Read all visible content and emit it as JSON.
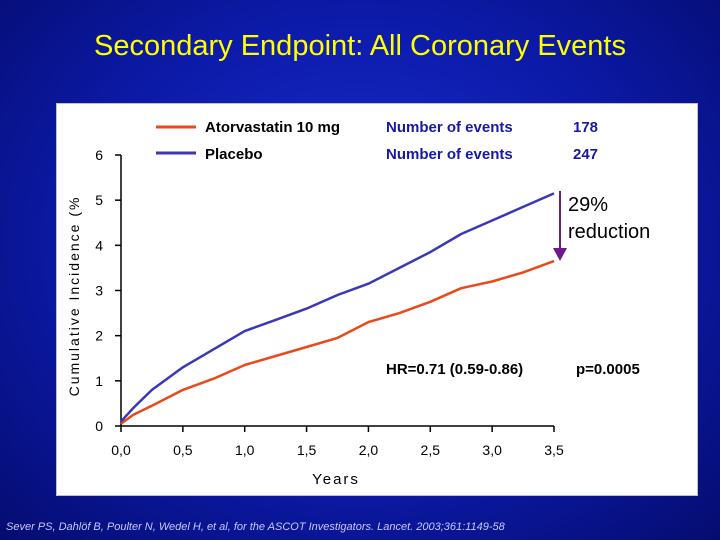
{
  "slide": {
    "title": "Secondary Endpoint: All Coronary Events",
    "citation": "Sever PS, Dahlöf B, Poulter N, Wedel H, et al, for the ASCOT Investigators. Lancet. 2003;361:1149-58"
  },
  "chart_data": {
    "type": "line",
    "ylabel": "Cumulative Incidence (%",
    "xlabel": "Years",
    "xlim": [
      0,
      3.5
    ],
    "ylim": [
      0,
      6
    ],
    "x_ticks": [
      "0,0",
      "0,5",
      "1,0",
      "1,5",
      "2,0",
      "2,5",
      "3,0",
      "3,5"
    ],
    "y_ticks": [
      "0",
      "1",
      "2",
      "3",
      "4",
      "5",
      "6"
    ],
    "grid": false,
    "legend_placement": "top",
    "series": [
      {
        "name": "Atorvastatin 10 mg",
        "color": "#e84a1a",
        "events_label": "Number of events",
        "events": "178",
        "x": [
          0,
          0.1,
          0.25,
          0.5,
          0.75,
          1.0,
          1.25,
          1.5,
          1.75,
          2.0,
          2.25,
          2.5,
          2.75,
          3.0,
          3.25,
          3.5
        ],
        "y": [
          0.05,
          0.25,
          0.45,
          0.8,
          1.05,
          1.35,
          1.55,
          1.75,
          1.95,
          2.3,
          2.5,
          2.75,
          3.05,
          3.2,
          3.4,
          3.65
        ]
      },
      {
        "name": "Placebo",
        "color": "#3a38b8",
        "events_label": "Number of events",
        "events": "247",
        "x": [
          0,
          0.1,
          0.25,
          0.5,
          0.75,
          1.0,
          1.25,
          1.5,
          1.75,
          2.0,
          2.25,
          2.5,
          2.75,
          3.0,
          3.25,
          3.5
        ],
        "y": [
          0.1,
          0.4,
          0.8,
          1.3,
          1.7,
          2.1,
          2.35,
          2.6,
          2.9,
          3.15,
          3.5,
          3.85,
          4.25,
          4.55,
          4.85,
          5.15
        ]
      }
    ],
    "annotations": {
      "reduction_line1": "29%",
      "reduction_line2": "reduction",
      "hr": "HR=0.71 (0.59-0.86)",
      "p_value": "p=0.0005"
    }
  }
}
